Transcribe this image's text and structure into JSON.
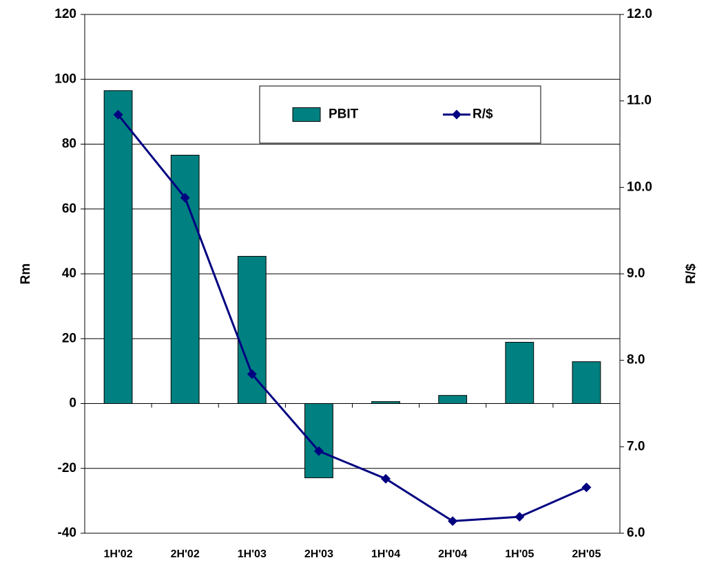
{
  "chart_data": {
    "type": "bar_line",
    "categories": [
      "1H'02",
      "2H'02",
      "1H'03",
      "2H'03",
      "1H'04",
      "2H'04",
      "1H'05",
      "2H'05"
    ],
    "series": [
      {
        "name": "PBIT",
        "type": "bar",
        "color": "#008080",
        "values": [
          96.5,
          76.6,
          45.4,
          -22.9,
          0.6,
          2.5,
          18.9,
          12.9
        ]
      },
      {
        "name": "R/$",
        "type": "line",
        "axis": "y2",
        "color": "#000080",
        "values": [
          10.84,
          9.88,
          7.84,
          6.95,
          6.63,
          6.14,
          6.19,
          6.53
        ]
      }
    ],
    "ylabel": "Rm",
    "y2label": "R/$",
    "ylim": [
      -40,
      120
    ],
    "yticks": [
      -40,
      -20,
      0,
      20,
      40,
      60,
      80,
      100,
      120
    ],
    "y2lim": [
      6,
      12
    ],
    "y2ticks": [
      {
        "value": 6,
        "label": "6.0"
      },
      {
        "value": 7,
        "label": "7.0"
      },
      {
        "value": 8,
        "label": "8.0"
      },
      {
        "value": 9,
        "label": "9.0"
      },
      {
        "value": 10,
        "label": "10.0"
      },
      {
        "value": 11,
        "label": "11.0"
      },
      {
        "value": 12,
        "label": "12.0"
      }
    ],
    "grid": true,
    "legend": "upper right"
  }
}
